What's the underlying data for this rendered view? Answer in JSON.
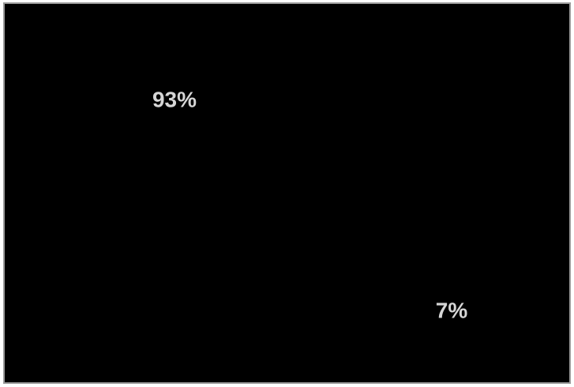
{
  "chart_data": {
    "type": "bar",
    "categories": [
      "",
      ""
    ],
    "values": [
      93,
      7
    ],
    "data_labels": [
      "93%",
      "7%"
    ],
    "ylim": [
      0,
      100
    ],
    "grid": false,
    "title": "",
    "xlabel": "",
    "ylabel": ""
  },
  "colors": {
    "background": "#000000",
    "border": "#9a9a9a",
    "label": "#d6d6d6"
  }
}
